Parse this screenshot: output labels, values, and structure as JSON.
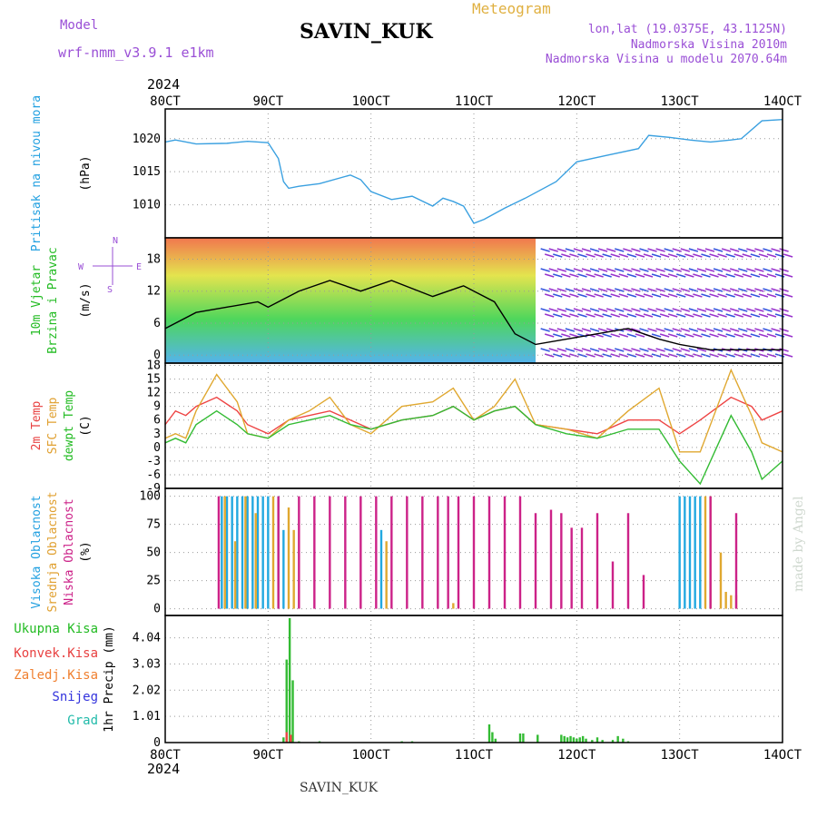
{
  "header": {
    "model_label": "Model",
    "model_name": "wrf-nmm_v3.9.1 e1km",
    "station": "SAVIN_KUK",
    "product": "Meteogram",
    "lonlat": "lon,lat (19.0375E, 43.1125N)",
    "elevation": "Nadmorska Visina 2010m",
    "model_elevation": "Nadmorska Visina u modelu 2070.64m",
    "year": "2024",
    "footer": "SAVIN_KUK",
    "credit": "made by Angel"
  },
  "chart_data": [
    {
      "type": "line",
      "panel": "pressure",
      "ylabel": [
        "Pritisak na nivou mora",
        "(hPa)"
      ],
      "ylabel_colors": [
        "#22a0e0",
        "#000000"
      ],
      "x_ticks": [
        "80CT",
        "90CT",
        "10OCT",
        "11OCT",
        "12OCT",
        "13OCT",
        "14OCT"
      ],
      "y_ticks": [
        1010,
        1015,
        1020
      ],
      "ylim": [
        1005,
        1024.5
      ],
      "series": [
        {
          "color": "#3aa0e0",
          "x": [
            8.0,
            8.1,
            8.3,
            8.6,
            8.8,
            9.0,
            9.1,
            9.15,
            9.2,
            9.3,
            9.5,
            9.8,
            9.9,
            10.0,
            10.2,
            10.4,
            10.6,
            10.7,
            10.8,
            10.9,
            11.0,
            11.1,
            11.3,
            11.5,
            11.8,
            12.0,
            12.3,
            12.6,
            12.7,
            12.9,
            13.1,
            13.3,
            13.5,
            13.6,
            13.8,
            14.0
          ],
          "values": [
            1019.5,
            1019.8,
            1019.2,
            1019.3,
            1019.6,
            1019.4,
            1017.0,
            1013.5,
            1012.5,
            1012.8,
            1013.2,
            1014.5,
            1013.8,
            1012.0,
            1010.8,
            1011.3,
            1009.8,
            1011.0,
            1010.5,
            1009.8,
            1007.2,
            1007.8,
            1009.5,
            1011.0,
            1013.5,
            1016.5,
            1017.5,
            1018.5,
            1020.5,
            1020.2,
            1019.8,
            1019.5,
            1019.8,
            1020.0,
            1022.7,
            1022.9
          ]
        }
      ]
    },
    {
      "type": "line",
      "panel": "wind",
      "ylabel": [
        "10m Vjetar",
        "Brzina i Pravac",
        "(m/s)"
      ],
      "ylabel_colors": [
        "#22bb22",
        "#22bb22",
        "#000000"
      ],
      "compass": [
        "N",
        "W",
        "E",
        "S"
      ],
      "y_ticks": [
        0,
        6,
        12,
        18
      ],
      "ylim": [
        -1.5,
        22
      ],
      "series": [
        {
          "color": "#000000",
          "x": [
            8.0,
            8.3,
            8.6,
            8.9,
            9.0,
            9.2,
            9.3,
            9.6,
            9.9,
            10.2,
            10.6,
            10.9,
            11.0,
            11.2,
            11.4,
            11.6,
            11.9,
            12.2,
            12.5,
            12.8,
            13.0,
            13.3,
            13.6,
            13.8,
            14.0
          ],
          "values": [
            5,
            8,
            9,
            10,
            9,
            11,
            12,
            14,
            12,
            14,
            11,
            13,
            12,
            10,
            4,
            2,
            3,
            4,
            5,
            3,
            2,
            1,
            1,
            1,
            1
          ]
        }
      ]
    },
    {
      "type": "line",
      "panel": "temperature",
      "ylabel": [
        "2m Temp",
        "SFC Temp",
        "dewpt Temp",
        "(C)"
      ],
      "ylabel_colors": [
        "#e84040",
        "#e0a030",
        "#22bb22",
        "#000000"
      ],
      "y_ticks": [
        -9,
        -6,
        -3,
        0,
        3,
        6,
        9,
        12,
        15,
        18
      ],
      "ylim": [
        -9,
        18.5
      ],
      "series": [
        {
          "name": "2m Temp",
          "color": "#ee4444",
          "x": [
            8.0,
            8.1,
            8.2,
            8.3,
            8.5,
            8.7,
            8.8,
            9.0,
            9.2,
            9.4,
            9.6,
            9.8,
            10.0,
            10.3,
            10.6,
            10.8,
            11.0,
            11.2,
            11.4,
            11.6,
            11.9,
            12.2,
            12.5,
            12.8,
            13.0,
            13.2,
            13.5,
            13.7,
            13.8,
            14.0
          ],
          "values": [
            5,
            8,
            7,
            9,
            11,
            8,
            5,
            3,
            6,
            7,
            8,
            6,
            4,
            6,
            7,
            9,
            6,
            8,
            9,
            5,
            4,
            3,
            6,
            6,
            3,
            6,
            11,
            9,
            6,
            8
          ]
        },
        {
          "name": "SFC Temp",
          "color": "#e0a830",
          "x": [
            8.0,
            8.1,
            8.2,
            8.3,
            8.5,
            8.7,
            8.8,
            9.0,
            9.2,
            9.4,
            9.6,
            9.8,
            10.0,
            10.3,
            10.6,
            10.8,
            11.0,
            11.2,
            11.4,
            11.6,
            11.9,
            12.2,
            12.5,
            12.8,
            13.0,
            13.2,
            13.5,
            13.7,
            13.8,
            14.0
          ],
          "values": [
            2,
            3,
            2,
            8,
            16,
            10,
            3,
            2,
            6,
            8,
            11,
            5,
            3,
            9,
            10,
            13,
            6,
            9,
            15,
            5,
            4,
            2,
            8,
            13,
            -1,
            -1,
            17,
            7,
            1,
            -1
          ]
        },
        {
          "name": "dewpt Temp",
          "color": "#33bb33",
          "x": [
            8.0,
            8.1,
            8.2,
            8.3,
            8.5,
            8.7,
            8.8,
            9.0,
            9.2,
            9.4,
            9.6,
            9.8,
            10.0,
            10.3,
            10.6,
            10.8,
            11.0,
            11.2,
            11.4,
            11.6,
            11.9,
            12.2,
            12.5,
            12.8,
            13.0,
            13.2,
            13.5,
            13.7,
            13.8,
            14.0
          ],
          "values": [
            1,
            2,
            1,
            5,
            8,
            5,
            3,
            2,
            5,
            6,
            7,
            5,
            4,
            6,
            7,
            9,
            6,
            8,
            9,
            5,
            3,
            2,
            4,
            4,
            -3,
            -8,
            7,
            -1,
            -7,
            -3
          ]
        }
      ]
    },
    {
      "type": "bar",
      "panel": "cloud",
      "ylabel": [
        "Visoka Oblacnost",
        "Srednja Oblacnost",
        "Niska Oblacnost",
        "(%)"
      ],
      "ylabel_colors": [
        "#22a0e0",
        "#e0a030",
        "#cc2288",
        "#000000"
      ],
      "y_ticks": [
        0,
        25,
        50,
        75,
        100
      ],
      "ylim": [
        -6,
        107
      ],
      "series": [
        {
          "name": "Visoka Oblacnost",
          "color": "#22a8e0",
          "x": [
            8.55,
            8.6,
            8.65,
            8.7,
            8.75,
            8.8,
            8.85,
            8.9,
            8.95,
            9.0,
            9.1,
            9.15,
            10.1,
            13.0,
            13.05,
            13.1,
            13.15,
            13.2
          ],
          "values": [
            100,
            100,
            100,
            100,
            100,
            100,
            100,
            100,
            100,
            100,
            100,
            70,
            70,
            100,
            100,
            100,
            100,
            100
          ]
        },
        {
          "name": "Srednja Oblacnost",
          "color": "#e0a830",
          "x": [
            8.58,
            8.68,
            8.78,
            8.88,
            9.05,
            9.2,
            9.25,
            10.15,
            10.8,
            13.25,
            13.3,
            13.4,
            13.45,
            13.5,
            13.55
          ],
          "values": [
            100,
            60,
            100,
            85,
            100,
            90,
            70,
            60,
            5,
            100,
            100,
            50,
            15,
            12,
            12
          ]
        },
        {
          "name": "Niska Oblacnost",
          "color": "#cc2288",
          "x": [
            8.52,
            9.1,
            9.3,
            9.45,
            9.6,
            9.75,
            9.9,
            10.05,
            10.2,
            10.35,
            10.5,
            10.65,
            10.75,
            10.85,
            11.0,
            11.15,
            11.3,
            11.45,
            11.6,
            11.75,
            11.85,
            11.95,
            12.05,
            12.2,
            12.35,
            12.5,
            12.65,
            13.3,
            13.55
          ],
          "values": [
            100,
            100,
            100,
            100,
            100,
            100,
            100,
            100,
            100,
            100,
            100,
            100,
            100,
            100,
            100,
            100,
            100,
            100,
            85,
            88,
            85,
            72,
            72,
            85,
            42,
            85,
            30,
            100,
            85
          ]
        }
      ]
    },
    {
      "type": "bar",
      "panel": "precipitation",
      "ylabel": [
        "1hr Precip (mm)"
      ],
      "ylabel_colors": [
        "#000000"
      ],
      "legend": [
        "Ukupna Kisa",
        "Konvek.Kisa",
        "Zaledj.Kisa",
        "Snijeg",
        "Grad"
      ],
      "legend_colors": [
        "#22bb22",
        "#e84040",
        "#f08030",
        "#3333dd",
        "#22bbaa"
      ],
      "y_ticks": [
        0,
        1.01,
        2.02,
        3.03,
        4.04
      ],
      "ylim": [
        0,
        4.9
      ],
      "series": [
        {
          "name": "Ukupna Kisa",
          "color": "#33bb33",
          "x": [
            9.15,
            9.18,
            9.21,
            9.24,
            9.3,
            9.5,
            10.3,
            10.4,
            11.15,
            11.18,
            11.21,
            11.45,
            11.48,
            11.62,
            11.85,
            11.88,
            11.91,
            11.94,
            11.97,
            12.0,
            12.03,
            12.06,
            12.09,
            12.15,
            12.2,
            12.25,
            12.35,
            12.4,
            12.45,
            12.5
          ],
          "values": [
            0.2,
            3.2,
            4.8,
            2.4,
            0.05,
            0.05,
            0.05,
            0.05,
            0.7,
            0.4,
            0.15,
            0.35,
            0.35,
            0.3,
            0.3,
            0.25,
            0.2,
            0.25,
            0.2,
            0.15,
            0.2,
            0.25,
            0.15,
            0.1,
            0.2,
            0.1,
            0.1,
            0.25,
            0.15,
            0.05
          ]
        },
        {
          "name": "Konvek.Kisa",
          "color": "#ee4444",
          "x": [
            9.18,
            9.22
          ],
          "values": [
            0.4,
            0.3
          ]
        }
      ]
    }
  ]
}
